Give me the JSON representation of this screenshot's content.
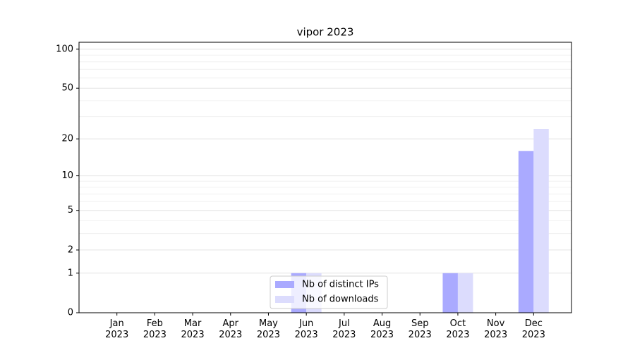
{
  "chart_data": {
    "type": "bar",
    "title": "vipor 2023",
    "categories": [
      "Jan\n2023",
      "Feb\n2023",
      "Mar\n2023",
      "Apr\n2023",
      "May\n2023",
      "Jun\n2023",
      "Jul\n2023",
      "Aug\n2023",
      "Sep\n2023",
      "Oct\n2023",
      "Nov\n2023",
      "Dec\n2023"
    ],
    "series": [
      {
        "name": "Nb of distinct IPs",
        "color": "#aaaaff",
        "values": [
          0,
          0,
          0,
          0,
          0,
          1,
          0,
          0,
          0,
          1,
          0,
          16
        ]
      },
      {
        "name": "Nb of downloads",
        "color": "#dcdcfd",
        "values": [
          0,
          0,
          0,
          0,
          0,
          1,
          0,
          0,
          0,
          1,
          0,
          24
        ]
      }
    ],
    "yscale": "log1p",
    "ylim": [
      0,
      113
    ],
    "yticks": [
      0,
      1,
      2,
      5,
      10,
      20,
      50,
      100
    ],
    "yminor": [
      3,
      4,
      6,
      7,
      8,
      9,
      30,
      40,
      60,
      70,
      80,
      90
    ],
    "grid": true,
    "legend": "lower center"
  }
}
